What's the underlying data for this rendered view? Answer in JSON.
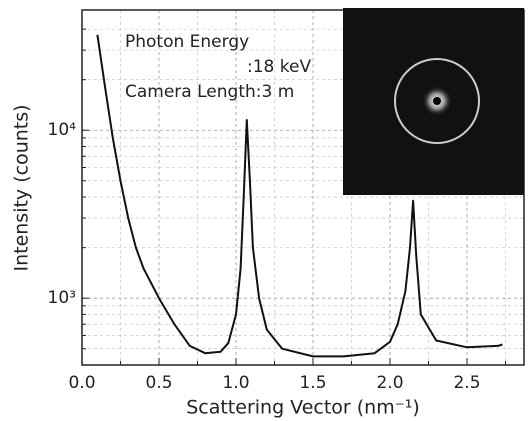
{
  "chart_data": {
    "type": "line",
    "x_label": "Scattering Vector (nm⁻¹)",
    "y_label": "Intensity (counts)",
    "annotations": [
      "Photon Energy",
      ":18 keV",
      "Camera Length:3 m"
    ],
    "series": [
      {
        "color": "#111111",
        "x": [
          0.1,
          0.15,
          0.2,
          0.25,
          0.3,
          0.35,
          0.4,
          0.5,
          0.6,
          0.7,
          0.8,
          0.9,
          0.95,
          1.0,
          1.03,
          1.05,
          1.07,
          1.09,
          1.11,
          1.15,
          1.2,
          1.3,
          1.5,
          1.7,
          1.9,
          2.0,
          2.05,
          2.1,
          2.13,
          2.15,
          2.17,
          2.2,
          2.3,
          2.5,
          2.7,
          2.73
        ],
        "values": [
          37000,
          18000,
          9000,
          5000,
          3000,
          2000,
          1500,
          1000,
          700,
          520,
          470,
          480,
          540,
          800,
          1500,
          4000,
          11500,
          5000,
          2000,
          1000,
          650,
          500,
          450,
          450,
          470,
          550,
          700,
          1100,
          2000,
          3800,
          1800,
          800,
          560,
          510,
          520,
          530
        ]
      }
    ],
    "xlim": [
      0,
      2.87
    ],
    "xticks": [
      {
        "value": 0,
        "label": "0.0"
      },
      0.5,
      {
        "value": 1,
        "label": "1.0"
      },
      1.5,
      {
        "value": 2,
        "label": "2.0"
      },
      2.5
    ],
    "xminorticks": [
      0.25,
      0.75,
      1.25,
      1.75,
      2.25,
      2.75
    ],
    "ylim": [
      400,
      52000
    ],
    "yscale": "log",
    "yticks": [
      {
        "value": 1000,
        "label": "10³"
      },
      {
        "value": 10000,
        "label": "10⁴"
      }
    ],
    "yminorticks": [
      500,
      600,
      700,
      800,
      900,
      2000,
      3000,
      4000,
      5000,
      6000,
      7000,
      8000,
      9000,
      20000,
      30000,
      40000
    ],
    "grid": true
  }
}
